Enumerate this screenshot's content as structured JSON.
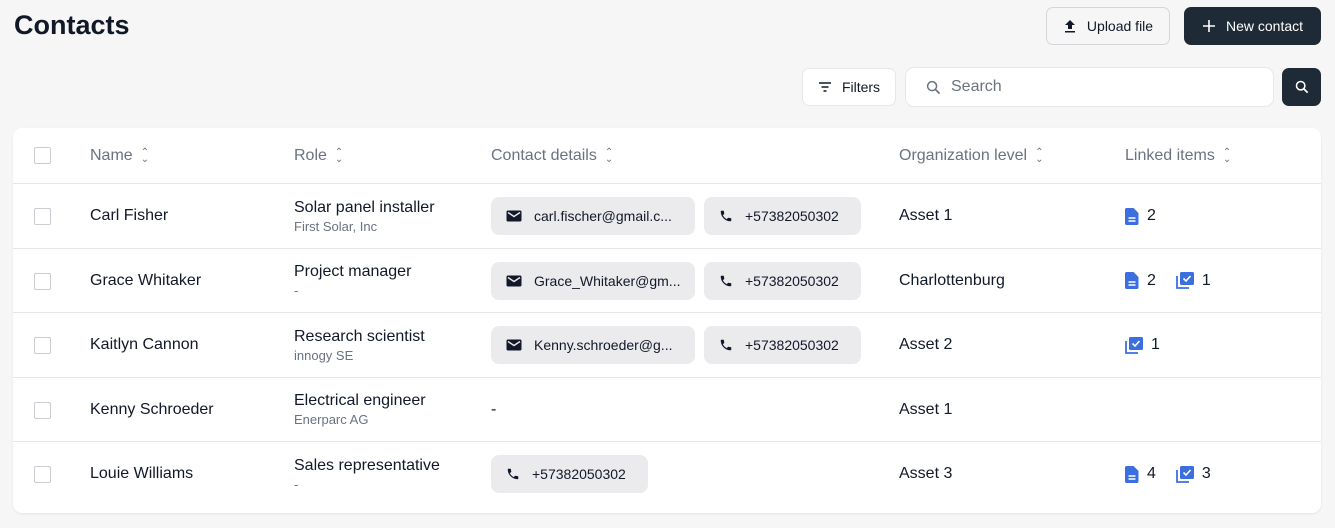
{
  "page": {
    "title": "Contacts"
  },
  "toolbar": {
    "upload_label": "Upload file",
    "new_contact_label": "New contact",
    "filters_label": "Filters",
    "search_placeholder": "Search",
    "search_value": ""
  },
  "table": {
    "columns": [
      "Name",
      "Role",
      "Contact details",
      "Organization level",
      "Linked items"
    ],
    "rows": [
      {
        "name": "Carl Fisher",
        "role": "Solar panel installer",
        "company": "First Solar, Inc",
        "email": "carl.fischer@gmail.c...",
        "phone": "+57382050302",
        "org": "Asset 1",
        "documents": "2",
        "tasks": null
      },
      {
        "name": "Grace Whitaker",
        "role": "Project manager",
        "company": "-",
        "email": "Grace_Whitaker@gm...",
        "phone": "+57382050302",
        "org": "Charlottenburg",
        "documents": "2",
        "tasks": "1"
      },
      {
        "name": "Kaitlyn Cannon",
        "role": "Research scientist",
        "company": "innogy SE",
        "email": "Kenny.schroeder@g...",
        "phone": "+57382050302",
        "org": "Asset 2",
        "documents": null,
        "tasks": "1"
      },
      {
        "name": "Kenny Schroeder",
        "role": "Electrical engineer",
        "company": "Enerparc AG",
        "email": null,
        "phone": null,
        "contact_empty": "-",
        "org": "Asset 1",
        "documents": null,
        "tasks": null
      },
      {
        "name": "Louie Williams",
        "role": "Sales representative",
        "company": "-",
        "email": null,
        "phone": "+57382050302",
        "org": "Asset 3",
        "documents": "4",
        "tasks": "3"
      }
    ]
  },
  "colors": {
    "primary_dark": "#1e2a36",
    "icon_blue": "#3b6fe0",
    "chip_bg": "#ebebed"
  }
}
